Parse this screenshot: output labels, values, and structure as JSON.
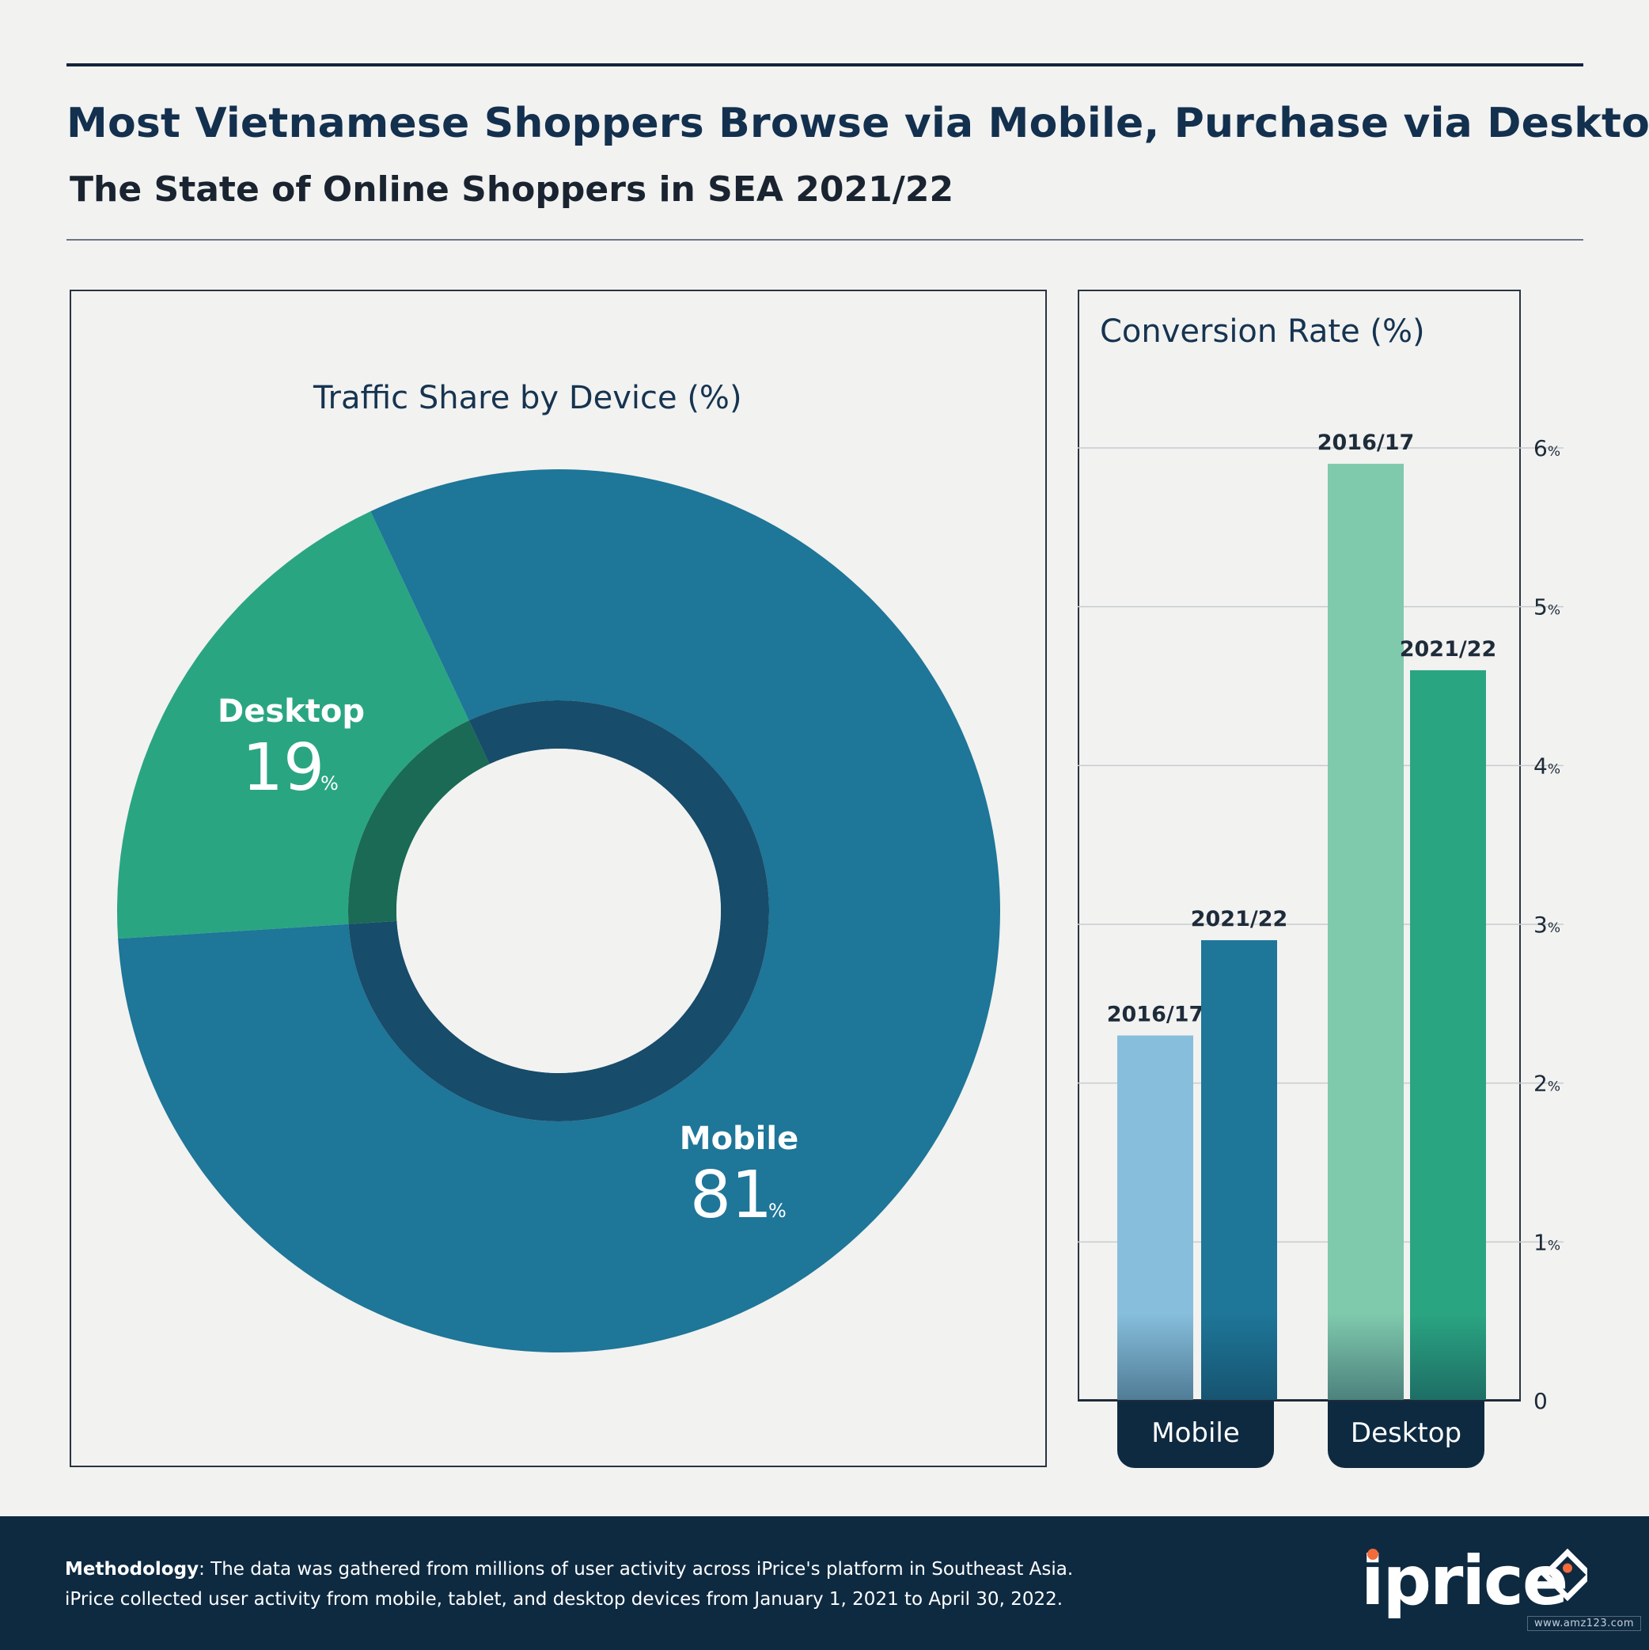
{
  "title": "Most Vietnamese Shoppers Browse via Mobile, Purchase via Desktop",
  "subtitle": "The State of Online Shoppers in SEA 2021/22",
  "colors": {
    "mobile": "#1e7698",
    "mobile_light": "#86bedb",
    "desktop": "#2aa582",
    "desktop_light": "#7fc9ad",
    "dark_navy": "#0e2a41",
    "inner_ring": "#174c6a"
  },
  "chart_data": [
    {
      "type": "pie",
      "title": "Traffic Share by Device (%)",
      "labels": [
        "Mobile",
        "Desktop"
      ],
      "values": [
        81,
        19
      ],
      "value_labels": [
        "81",
        "19"
      ],
      "unit": "%"
    },
    {
      "type": "bar",
      "title": "Conversion Rate (%)",
      "categories": [
        "Mobile",
        "Desktop"
      ],
      "series": [
        {
          "name": "2016/17",
          "values": [
            2.3,
            5.9
          ]
        },
        {
          "name": "2021/22",
          "values": [
            2.9,
            4.6
          ]
        }
      ],
      "ylim": [
        0,
        6
      ],
      "yticks": [
        {
          "value": 0,
          "label": "0",
          "suffix": ""
        },
        {
          "value": 1,
          "label": "1",
          "suffix": "%"
        },
        {
          "value": 2,
          "label": "2",
          "suffix": "%"
        },
        {
          "value": 3,
          "label": "3",
          "suffix": "%"
        },
        {
          "value": 4,
          "label": "4",
          "suffix": "%"
        },
        {
          "value": 5,
          "label": "5",
          "suffix": "%"
        },
        {
          "value": 6,
          "label": "6",
          "suffix": "%"
        }
      ],
      "grid": true,
      "axis_side": "right"
    }
  ],
  "footer": {
    "methodology_label": "Methodology",
    "methodology_line1": ": The data was gathered from millions of user activity across iPrice's platform in Southeast Asia.",
    "methodology_line2": "iPrice collected user activity from mobile, tablet, and desktop devices from January 1, 2021 to April 30, 2022.",
    "logo": "iprice",
    "watermark": "www.amz123.com"
  }
}
